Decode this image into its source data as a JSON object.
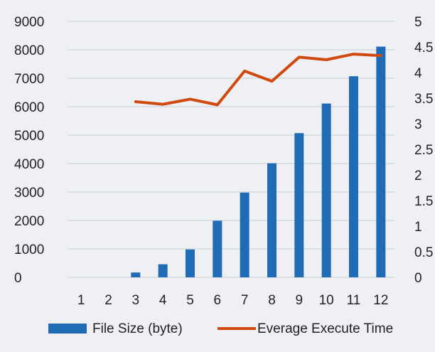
{
  "chart_data": {
    "type": "bar",
    "title": "",
    "xlabel": "",
    "ylabel": "",
    "categories": [
      "1",
      "2",
      "3",
      "4",
      "5",
      "6",
      "7",
      "8",
      "9",
      "10",
      "11",
      "12"
    ],
    "series": [
      {
        "name": "File Size (byte)",
        "type": "bar",
        "axis": "left",
        "color": "#1f6bb5",
        "values": [
          0,
          0,
          170,
          460,
          980,
          1990,
          2980,
          4010,
          5070,
          6110,
          7070,
          8110
        ]
      },
      {
        "name": "Everage Execute Time",
        "type": "line",
        "axis": "right",
        "color": "#d04a10",
        "values": [
          null,
          null,
          3.43,
          3.38,
          3.48,
          3.37,
          4.03,
          3.83,
          4.3,
          4.25,
          4.36,
          4.33
        ]
      }
    ],
    "ylim": [
      0,
      9000
    ],
    "y_ticks": [
      "0",
      "1000",
      "2000",
      "3000",
      "4000",
      "5000",
      "6000",
      "7000",
      "8000",
      "9000"
    ],
    "y2lim": [
      0,
      5
    ],
    "y2_ticks": [
      "0",
      "0.5",
      "1",
      "1.5",
      "2",
      "2.5",
      "3",
      "3.5",
      "4",
      "4.5",
      "5"
    ],
    "grid": true,
    "legend_position": "bottom"
  }
}
